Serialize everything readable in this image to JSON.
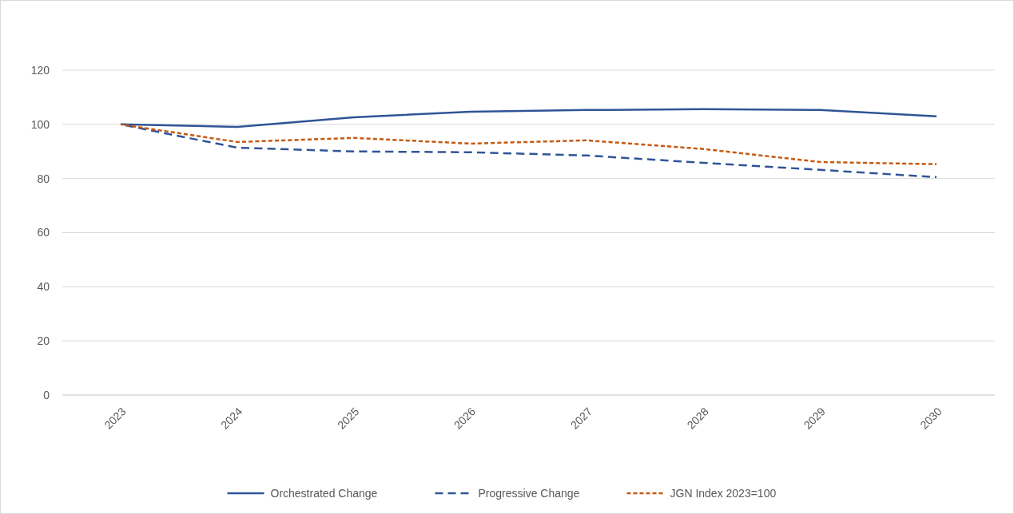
{
  "chart_data": {
    "type": "line",
    "categories": [
      "2023",
      "2024",
      "2025",
      "2026",
      "2027",
      "2028",
      "2029",
      "2030"
    ],
    "series": [
      {
        "name": "Orchestrated Change",
        "color": "#2f5597",
        "line_style": "solid",
        "values": [
          100,
          99.1,
          102.6,
          104.7,
          105.3,
          105.6,
          105.3,
          103
        ]
      },
      {
        "name": "Progressive Change",
        "color": "#2f5597",
        "line_style": "dashed",
        "values": [
          100,
          91.4,
          90,
          89.7,
          88.5,
          85.8,
          83.2,
          80.5
        ]
      },
      {
        "name": "JGN Index 2023=100",
        "color": "#c55a11",
        "line_style": "dotted",
        "values": [
          100,
          93.5,
          95,
          92.9,
          94.1,
          90.9,
          86.1,
          85.3
        ]
      }
    ],
    "ylim": [
      0,
      120
    ],
    "yticks": [
      0,
      20,
      40,
      60,
      80,
      100,
      120
    ],
    "grid": "y",
    "legend": "bottom",
    "marker": "none"
  }
}
